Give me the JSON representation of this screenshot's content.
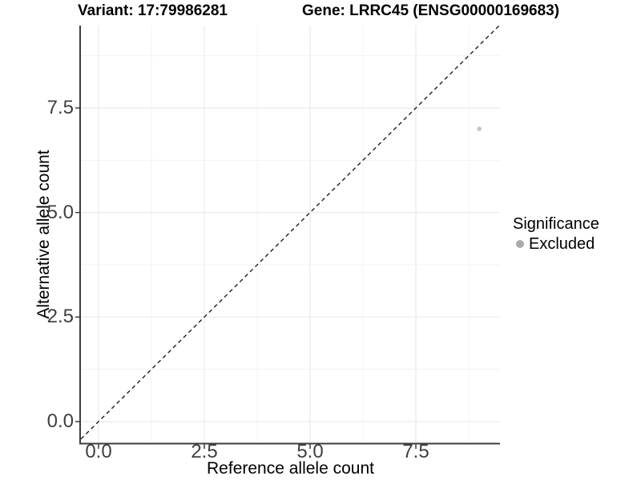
{
  "chart_data": {
    "type": "scatter",
    "titles": {
      "left": "Variant: 17:79986281",
      "right": "Gene: LRRC45 (ENSG00000169683)"
    },
    "xlabel": "Reference allele count",
    "ylabel": "Alternative allele count",
    "x_ticks": {
      "values": [
        0,
        2.5,
        5,
        7.5
      ],
      "labels": [
        "0.0",
        "2.5",
        "5.0",
        "7.5"
      ]
    },
    "y_ticks": {
      "values": [
        0,
        2.5,
        5,
        7.5
      ],
      "labels": [
        "0.0",
        "2.5",
        "5.0",
        "7.5"
      ]
    },
    "xlim": [
      -0.42,
      9.49
    ],
    "ylim": [
      -0.52,
      9.47
    ],
    "grid": true,
    "points": [
      {
        "x": 9,
        "y": 7,
        "significance": "Excluded"
      }
    ],
    "reference_line": {
      "type": "identity",
      "slope": 1,
      "intercept": 0,
      "linetype": "dashed"
    },
    "legend": {
      "title": "Significance",
      "position": "right",
      "items": [
        {
          "label": "Excluded",
          "color": "#aaaaaa"
        }
      ]
    },
    "colors": {
      "point": "#c6c6c6",
      "grid_major": "#e9e9e9",
      "grid_minor": "#f3f3f3",
      "axis_line": "#3d3d3d",
      "tick_mark": "#3d3d3d",
      "tick_label": "#404040",
      "dashed_line": "#1f1f1f",
      "background": "#ffffff"
    }
  }
}
